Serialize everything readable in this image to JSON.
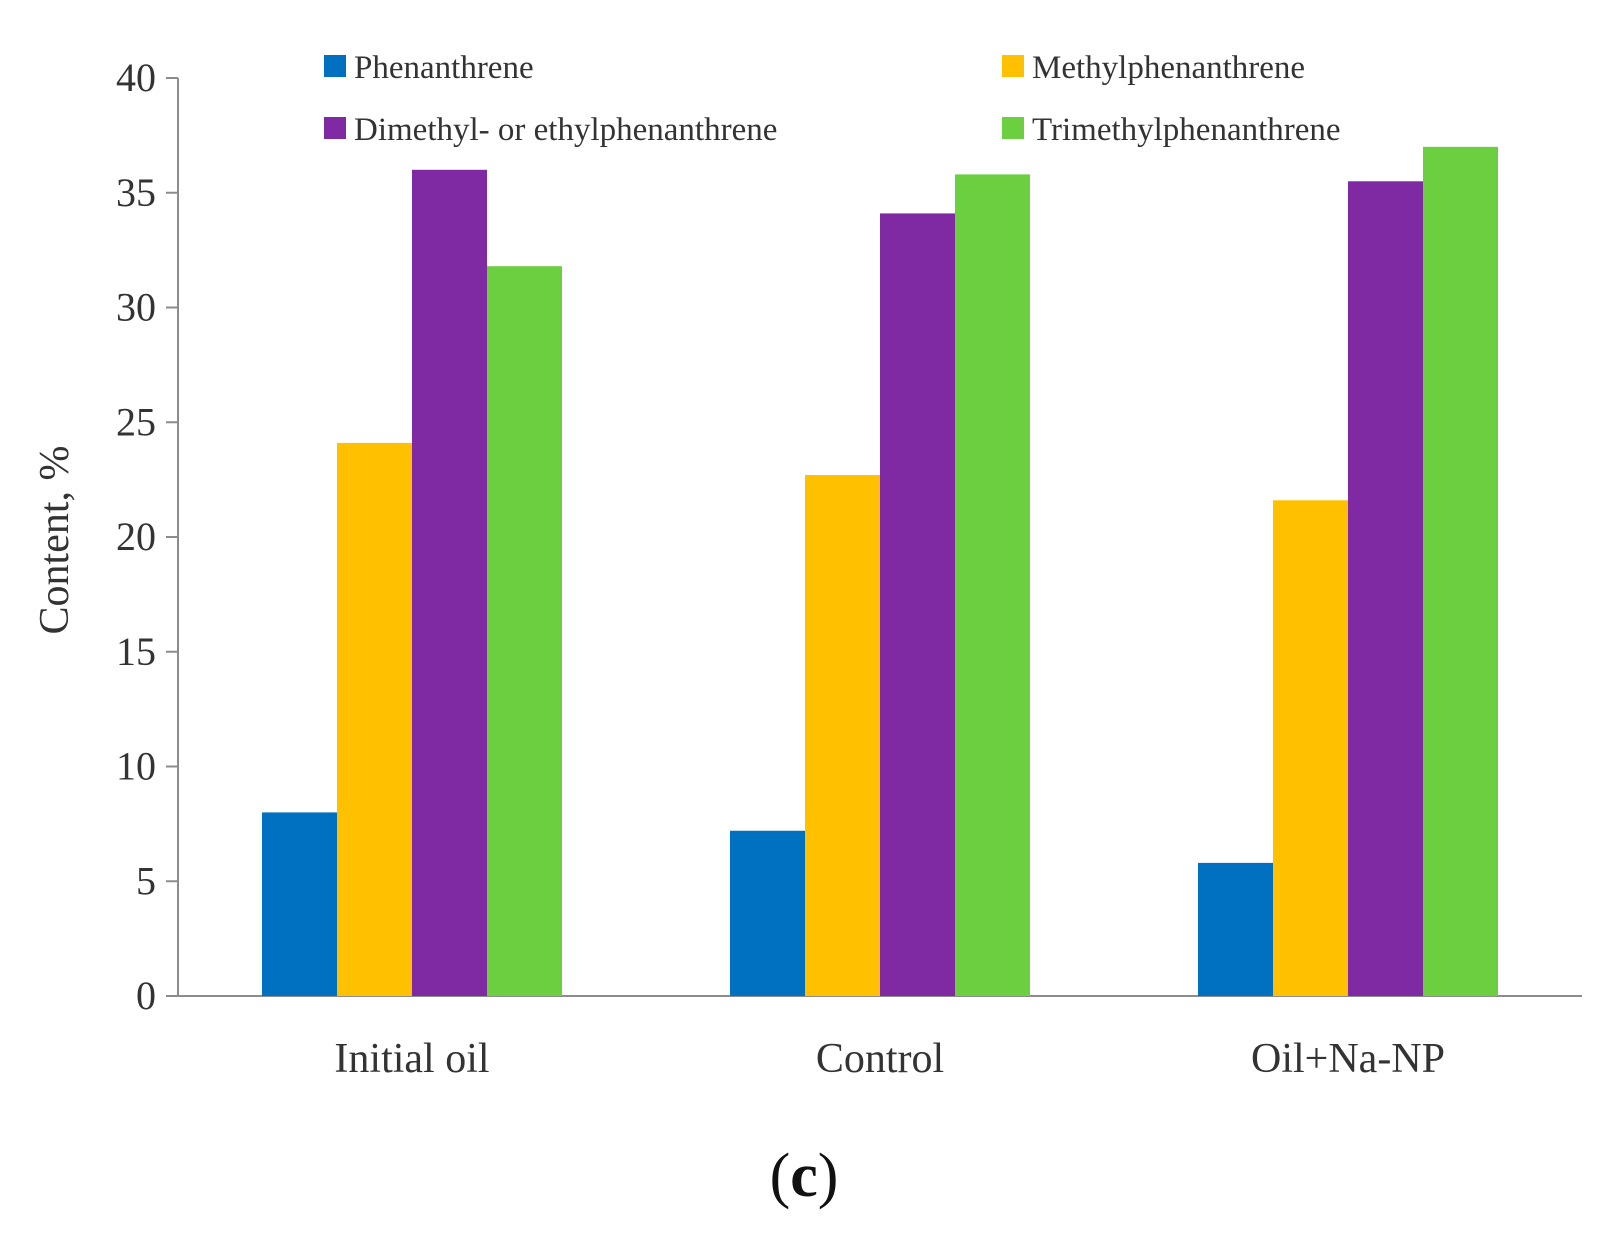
{
  "chart_data": {
    "type": "bar",
    "categories": [
      "Initial oil",
      "Control",
      "Oil+Na-NP"
    ],
    "series": [
      {
        "name": "Phenanthrene",
        "color": "#0070c0",
        "values": [
          8.0,
          7.2,
          5.8
        ]
      },
      {
        "name": "Methylphenanthrene",
        "color": "#ffc000",
        "values": [
          24.1,
          22.7,
          21.6
        ]
      },
      {
        "name": "Dimethyl- or ethylphenanthrene",
        "color": "#7f2aa3",
        "values": [
          36.0,
          34.1,
          35.5
        ]
      },
      {
        "name": "Trimethylphenanthrene",
        "color": "#6ccf3f",
        "values": [
          31.8,
          35.8,
          37.0
        ]
      }
    ],
    "ylabel": "Content, %",
    "xlabel": "",
    "ylim": [
      0,
      40
    ],
    "yticks": [
      "0",
      "5",
      "10",
      "15",
      "20",
      "25",
      "30",
      "35",
      "40"
    ],
    "grid": false,
    "legend_position": "top",
    "panel_label": {
      "open": "(",
      "letter": "c",
      "close": ")"
    }
  }
}
